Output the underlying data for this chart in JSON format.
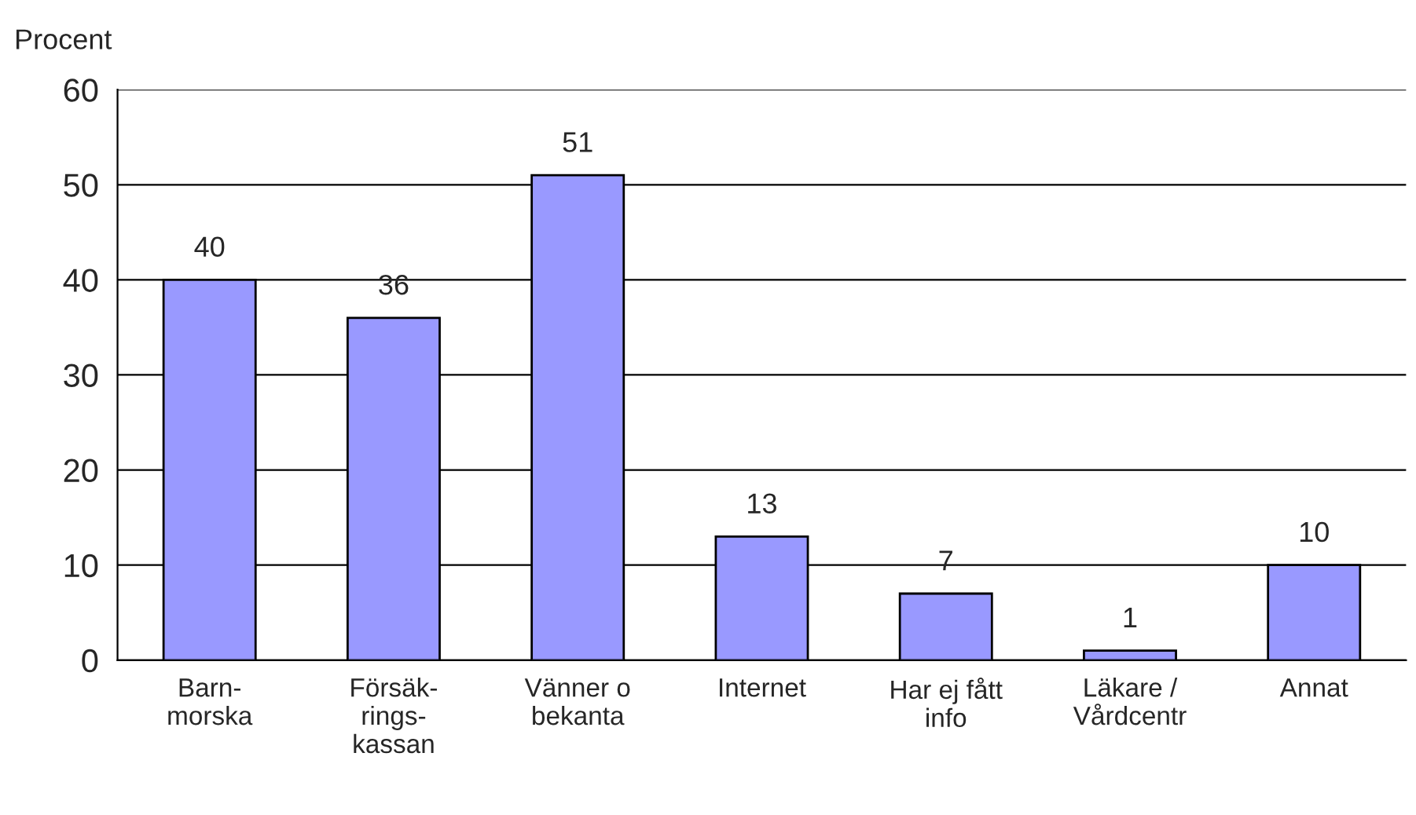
{
  "chart_data": {
    "type": "bar",
    "ylabel": "Procent",
    "categories": [
      "Barn-\nmorska",
      "Försäk-\nrings-\nkassan",
      "Vänner o\nbekanta",
      "Internet",
      "Har ej fått\ninfo",
      "Läkare /\nVårdcentr",
      "Annat"
    ],
    "values": [
      40,
      36,
      51,
      13,
      7,
      1,
      10
    ],
    "color": "#9999ff",
    "ylim": [
      0,
      60
    ],
    "yticks": [
      0,
      10,
      20,
      30,
      40,
      50,
      60
    ],
    "grid": "y",
    "data_labels": true
  }
}
